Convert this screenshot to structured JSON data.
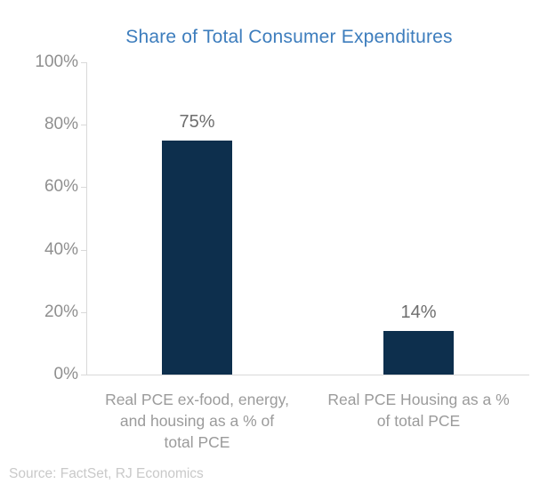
{
  "chart_data": {
    "type": "bar",
    "title": "Share of Total Consumer Expenditures",
    "categories": [
      "Real PCE ex-food, energy,\nand housing as a % of\ntotal PCE",
      "Real PCE Housing as a %\nof total PCE"
    ],
    "values": [
      75,
      14
    ],
    "value_labels": [
      "75%",
      "14%"
    ],
    "xlabel": "",
    "ylabel": "",
    "ylim": [
      0,
      100
    ],
    "yticks": [
      {
        "value": 0,
        "label": "0%"
      },
      {
        "value": 20,
        "label": "20%"
      },
      {
        "value": 40,
        "label": "40%"
      },
      {
        "value": 60,
        "label": "60%"
      },
      {
        "value": 80,
        "label": "80%"
      },
      {
        "value": 100,
        "label": "100%"
      }
    ],
    "grid": false,
    "legend": null,
    "source": "Source: FactSet, RJ Economics"
  },
  "colors": {
    "title": "#3D7DBD",
    "bar": "#0D2F4D",
    "axis_line": "#D9D9D9",
    "tick_label": "#8F8F8F",
    "data_label": "#6E6E6E",
    "category_label": "#9B9B9B",
    "source": "#C9C9C9"
  }
}
